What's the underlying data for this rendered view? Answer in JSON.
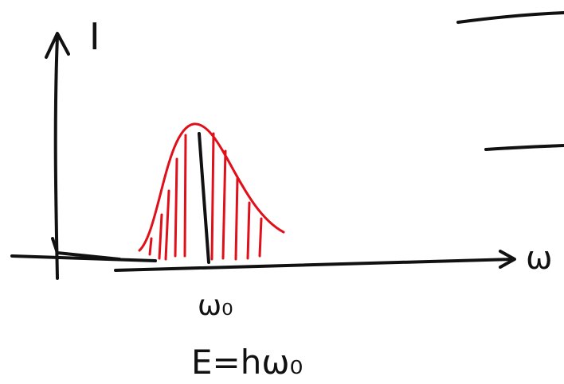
{
  "labels": {
    "y_axis": "I",
    "x_axis": "ω",
    "peak": "ω₀",
    "energy": "E=hω₀"
  }
}
